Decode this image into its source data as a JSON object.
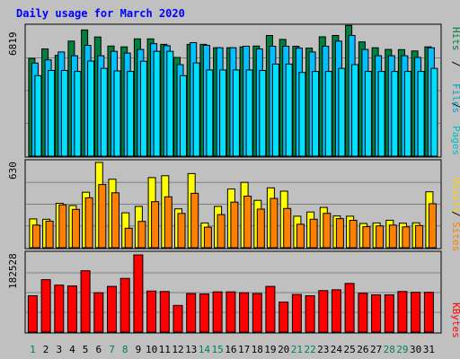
{
  "chart_data": {
    "type": "bar",
    "title": "Daily usage for March 2020",
    "days": [
      "1",
      "2",
      "3",
      "4",
      "5",
      "6",
      "7",
      "8",
      "9",
      "10",
      "11",
      "12",
      "13",
      "14",
      "15",
      "16",
      "17",
      "18",
      "19",
      "20",
      "21",
      "22",
      "23",
      "24",
      "25",
      "26",
      "27",
      "28",
      "29",
      "30",
      "31"
    ],
    "weekend_days": [
      "1",
      "7",
      "8",
      "14",
      "15",
      "21",
      "22",
      "28",
      "29"
    ],
    "panels": [
      {
        "id": "top",
        "max_label": "6819",
        "max": 6819,
        "right_labels": [
          "Pages",
          "Files",
          "Hits"
        ],
        "series": [
          {
            "name": "Hits",
            "color": "#008040",
            "values": [
              5160,
              5660,
              5320,
              6070,
              6660,
              6290,
              5810,
              5770,
              6190,
              6190,
              5900,
              5210,
              5900,
              5900,
              5720,
              5720,
              5770,
              5810,
              6370,
              6160,
              5800,
              5700,
              6300,
              6370,
              6900,
              6030,
              5720,
              5630,
              5620,
              5550,
              5770
            ]
          },
          {
            "name": "Files",
            "color": "#00c0ff",
            "values": [
              4910,
              5080,
              5500,
              5300,
              5850,
              5300,
              5530,
              5440,
              5630,
              5940,
              5830,
              4830,
              5990,
              5850,
              5720,
              5720,
              5800,
              5660,
              5800,
              5800,
              5700,
              5500,
              5800,
              6070,
              6370,
              5630,
              5300,
              5300,
              5300,
              5210,
              5720
            ]
          },
          {
            "name": "Pages",
            "color": "#00e0ff",
            "values": [
              4250,
              4520,
              4520,
              4470,
              5020,
              4630,
              4500,
              4470,
              5010,
              5530,
              5530,
              4250,
              4920,
              4550,
              4550,
              4550,
              4550,
              4520,
              4860,
              4860,
              4420,
              4470,
              4470,
              4630,
              4830,
              4470,
              4470,
              4470,
              4470,
              4470,
              4630
            ]
          }
        ]
      },
      {
        "id": "mid",
        "max_label": "630",
        "max": 630,
        "right_labels": [
          "Sites",
          "Visits"
        ],
        "series": [
          {
            "name": "Visits",
            "color": "#ffff00",
            "values": [
              213,
              210,
              328,
              312,
              410,
              630,
              506,
              258,
              305,
              518,
              532,
              287,
              548,
              183,
              305,
              434,
              483,
              350,
              442,
              418,
              233,
              264,
              298,
              235,
              233,
              179,
              183,
              203,
              181,
              184,
              413
            ]
          },
          {
            "name": "Sites",
            "color": "#ff8000",
            "values": [
              167,
              196,
              317,
              283,
              369,
              467,
              406,
              144,
              194,
              340,
              376,
              253,
              402,
              152,
              245,
              337,
              381,
              285,
              364,
              290,
              173,
              210,
              254,
              215,
              202,
              155,
              161,
              167,
              154,
              164,
              325
            ]
          }
        ]
      },
      {
        "id": "bot",
        "max_label": "182528",
        "max": 182528,
        "right_labels": [
          "KBytes"
        ],
        "series": [
          {
            "name": "KBytes",
            "color": "#ff0000",
            "values": [
              86000,
              124000,
              111000,
              109000,
              145000,
              93000,
              108000,
              127000,
              182528,
              97000,
              96000,
              63000,
              91000,
              90000,
              95000,
              95000,
              93000,
              91000,
              108000,
              71000,
              89000,
              86000,
              98000,
              100000,
              115000,
              92000,
              88000,
              88000,
              96000,
              94000,
              94000
            ]
          }
        ]
      }
    ]
  }
}
